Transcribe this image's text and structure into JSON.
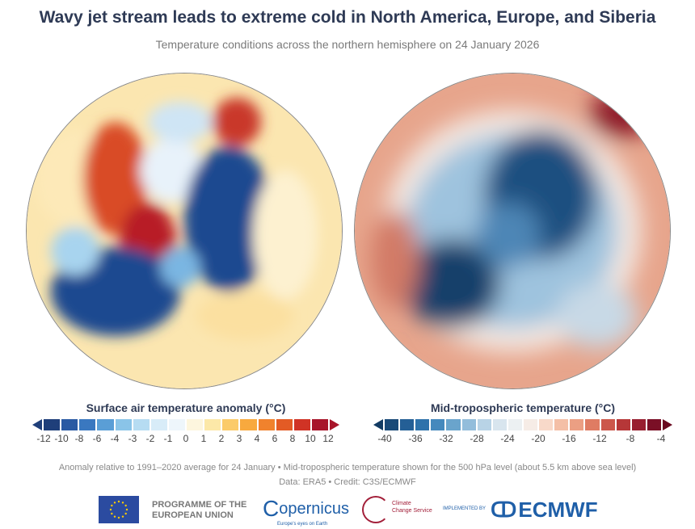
{
  "header": {
    "title": "Wavy jet stream leads to extreme cold in North America, Europe, and Siberia",
    "subtitle": "Temperature conditions across the northern hemisphere on 24 January 2026"
  },
  "left_map": {
    "colorbar": {
      "title": "Surface air temperature anomaly (°C)",
      "ticks": [
        "-12",
        "-10",
        "-8",
        "-6",
        "-4",
        "-3",
        "-2",
        "-1",
        "0",
        "1",
        "2",
        "3",
        "4",
        "6",
        "8",
        "10",
        "12"
      ],
      "colors": [
        "#1f3f7a",
        "#2a5aa3",
        "#3a78c0",
        "#5a9ed6",
        "#8ac4e8",
        "#b6dcf2",
        "#d8ecf8",
        "#eef6fb",
        "#fdf6de",
        "#fce8a8",
        "#fbcb6a",
        "#f8a93e",
        "#f0822d",
        "#e35b25",
        "#d03325",
        "#a8152a"
      ],
      "arrow_low": "#1f3f7a",
      "arrow_high": "#a8152a"
    }
  },
  "right_map": {
    "colorbar": {
      "title": "Mid-tropospheric temperature (°C)",
      "ticks": [
        "-40",
        "-36",
        "-32",
        "-28",
        "-24",
        "-20",
        "-16",
        "-12",
        "-8",
        "-4"
      ],
      "colors": [
        "#1a4a78",
        "#245f96",
        "#2e72ab",
        "#4589bd",
        "#6aa4cc",
        "#93bddb",
        "#b8d3e6",
        "#d8e5ee",
        "#ecf0f2",
        "#f6ece6",
        "#f8d9c9",
        "#f4bfa6",
        "#eb9f83",
        "#df7c63",
        "#cc574b",
        "#b63738",
        "#981e2f",
        "#7a0f26"
      ],
      "arrow_low": "#123b63",
      "arrow_high": "#6a0a20"
    }
  },
  "footer": {
    "note": "Anomaly relative to 1991–2020 average for 24 January • Mid-tropospheric temperature shown for the 500 hPa level (about 5.5 km above sea level)",
    "credit": "Data: ERA5 • Credit: C3S/ECMWF",
    "logos": {
      "eu": "PROGRAMME OF THE EUROPEAN UNION",
      "copernicus": "opernicus",
      "copernicus_tagline": "Europe's eyes on Earth",
      "c3s": "Climate Change Service",
      "implemented_by": "IMPLEMENTED BY",
      "ecmwf": "ECMWF"
    }
  }
}
